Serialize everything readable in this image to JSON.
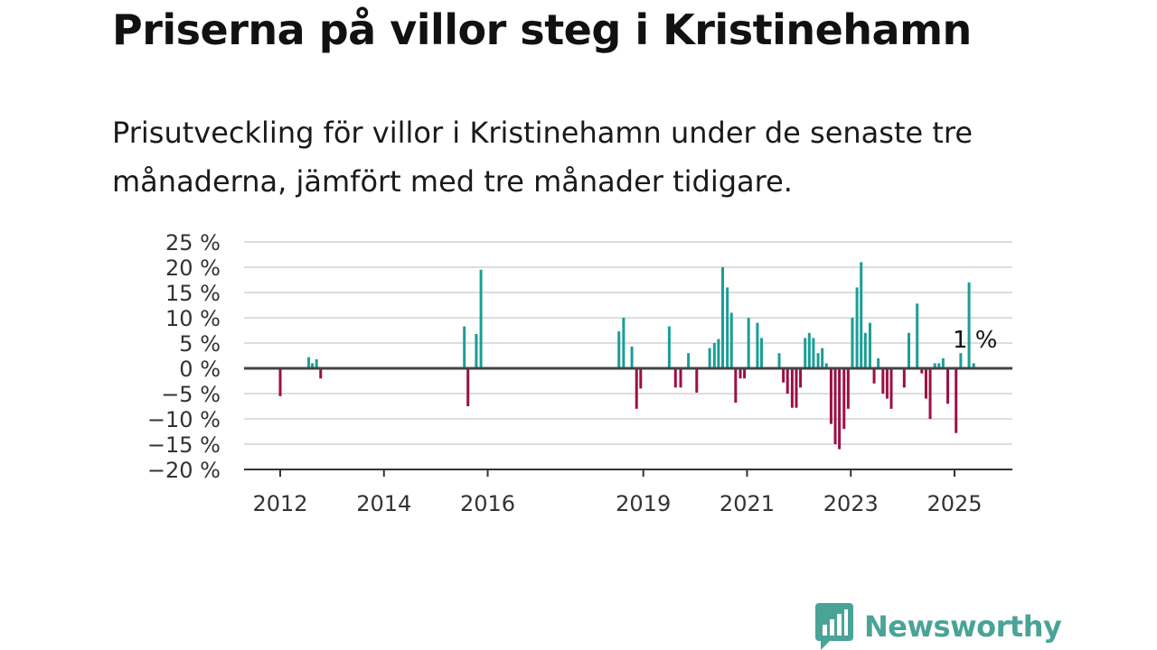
{
  "title": "Priserna på villor steg i Kristinehamn",
  "subtitle": "Prisutveckling för villor i Kristinehamn under de senaste tre månaderna, jämfört med tre månader tidigare.",
  "brand": {
    "name": "Newsworthy",
    "color": "#4aa397",
    "icon": "newsworthy-bar-chart-icon"
  },
  "colors": {
    "positive": "#1a9e96",
    "negative": "#9b1046",
    "zero_line": "#444444",
    "grid": "#dddddd"
  },
  "chart_data": {
    "type": "bar",
    "title": "",
    "xlabel": "",
    "ylabel": "",
    "ylim": [
      -20,
      25
    ],
    "yticks": [
      25,
      20,
      15,
      10,
      5,
      0,
      -5,
      -10,
      -15,
      -20
    ],
    "ytick_labels": [
      "25 %",
      "20 %",
      "15 %",
      "10 %",
      "5 %",
      "0 %",
      "−5 %",
      "−10 %",
      "−15 %",
      "−20 %"
    ],
    "xticks": [
      2012,
      2014,
      2016,
      2019,
      2021,
      2023,
      2025
    ],
    "xtick_labels": [
      "2012",
      "2014",
      "2016",
      "2019",
      "2021",
      "2023",
      "2025"
    ],
    "grid": true,
    "x_unit": "year (decimal)",
    "annotation": "1 %",
    "series": [
      {
        "values": [
          [
            2012.0,
            -5.5
          ],
          [
            2012.55,
            2.2
          ],
          [
            2012.62,
            1.0
          ],
          [
            2012.7,
            1.8
          ],
          [
            2012.78,
            -2.0
          ],
          [
            2015.55,
            8.3
          ],
          [
            2015.62,
            -7.5
          ],
          [
            2015.78,
            6.8
          ],
          [
            2015.87,
            19.5
          ],
          [
            2018.53,
            7.3
          ],
          [
            2018.62,
            10.0
          ],
          [
            2018.78,
            4.3
          ],
          [
            2018.87,
            -8.0
          ],
          [
            2018.95,
            -4.0
          ],
          [
            2019.5,
            8.3
          ],
          [
            2019.62,
            -3.8
          ],
          [
            2019.72,
            -3.8
          ],
          [
            2019.87,
            3.0
          ],
          [
            2020.03,
            -4.8
          ],
          [
            2020.28,
            4.0
          ],
          [
            2020.37,
            5.0
          ],
          [
            2020.45,
            5.8
          ],
          [
            2020.53,
            20.0
          ],
          [
            2020.62,
            16.0
          ],
          [
            2020.7,
            11.0
          ],
          [
            2020.78,
            -6.8
          ],
          [
            2020.87,
            -2.0
          ],
          [
            2020.95,
            -2.0
          ],
          [
            2021.03,
            10.0
          ],
          [
            2021.2,
            9.0
          ],
          [
            2021.28,
            6.0
          ],
          [
            2021.62,
            3.0
          ],
          [
            2021.7,
            -2.8
          ],
          [
            2021.78,
            -5.0
          ],
          [
            2021.87,
            -7.8
          ],
          [
            2021.95,
            -7.8
          ],
          [
            2022.03,
            -3.8
          ],
          [
            2022.12,
            6.0
          ],
          [
            2022.2,
            7.0
          ],
          [
            2022.28,
            6.0
          ],
          [
            2022.37,
            3.0
          ],
          [
            2022.45,
            4.0
          ],
          [
            2022.53,
            1.0
          ],
          [
            2022.62,
            -11.0
          ],
          [
            2022.7,
            -15.0
          ],
          [
            2022.78,
            -16.0
          ],
          [
            2022.87,
            -12.0
          ],
          [
            2022.95,
            -8.0
          ],
          [
            2023.03,
            10.0
          ],
          [
            2023.12,
            16.0
          ],
          [
            2023.2,
            21.0
          ],
          [
            2023.28,
            7.0
          ],
          [
            2023.37,
            9.0
          ],
          [
            2023.45,
            -3.0
          ],
          [
            2023.53,
            2.0
          ],
          [
            2023.62,
            -5.0
          ],
          [
            2023.7,
            -6.0
          ],
          [
            2023.78,
            -8.0
          ],
          [
            2024.03,
            -3.8
          ],
          [
            2024.12,
            7.0
          ],
          [
            2024.28,
            12.8
          ],
          [
            2024.37,
            -1.0
          ],
          [
            2024.45,
            -6.0
          ],
          [
            2024.53,
            -10.0
          ],
          [
            2024.62,
            1.0
          ],
          [
            2024.7,
            1.0
          ],
          [
            2024.78,
            2.0
          ],
          [
            2024.87,
            -7.0
          ],
          [
            2025.03,
            -12.8
          ],
          [
            2025.12,
            3.0
          ],
          [
            2025.28,
            17.0
          ],
          [
            2025.37,
            1.0
          ]
        ]
      }
    ]
  }
}
